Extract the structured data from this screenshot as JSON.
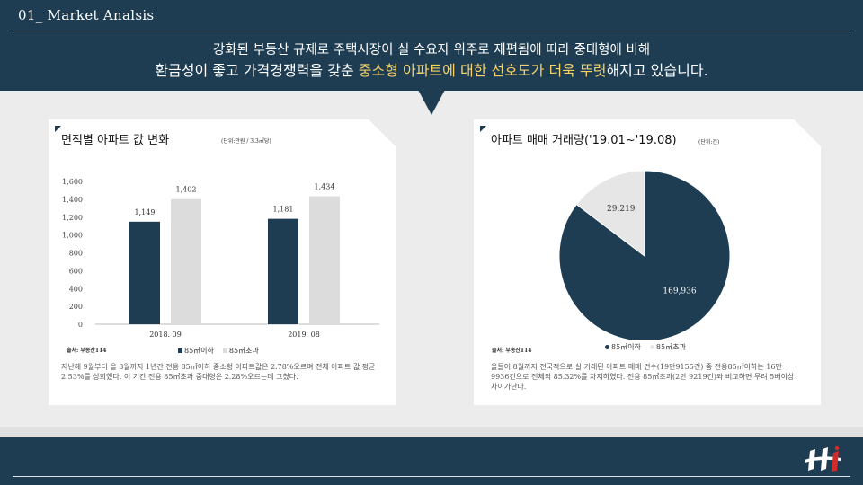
{
  "section_title": "01_ Market Analsis",
  "headline": {
    "line1": "강화된 부동산 규제로 주택시장이 실 수요자 위주로 재편됨에 따라 중대형에 비해",
    "line2_a": "환금성이 좋고 가격경쟁력을 갖춘 ",
    "line2_highlight": "중소형 아파트에 대한 선호도가 더욱 뚜렷",
    "line2_b": "해지고  있습니다."
  },
  "colors": {
    "navy": "#1e3d52",
    "light_bar": "#dcdcdc",
    "highlight": "#f5d26b"
  },
  "left_card": {
    "title": "면적별 아파트 값 변화",
    "unit": "(단위:만원 / 3.3㎡당)",
    "source": "출처: 부동산114",
    "legend": [
      "85㎡이하",
      "85㎡초과"
    ],
    "description": "지난해 9월부터  올 8월까지 1년간 전용 85㎡이하 중소형 아파트값은 2.78%오르며 전체 아파트 값 평균 2.53%를 상회했다. 이 기간 전용 85㎡초과 중대형은 2.28%오르는데 그쳤다."
  },
  "right_card": {
    "title": "아파트 매매 거래량('19.01~'19.08)",
    "unit": "(단위:건)",
    "source": "출처: 부동산114",
    "legend": [
      "85㎡이하",
      "85㎡초과"
    ],
    "description": "올들어 8월까지 전국적으로 실 거래된 아파트 매매 건수(19만9155건) 중 전용85㎡이하는 16만 9936건으로 전체의 85.32%를 차지하였다. 전용 85㎡초과(2만 9219건)와 비교하면 무려 5배이상 차이가난다."
  },
  "chart_data": [
    {
      "type": "bar",
      "categories": [
        "2018. 09",
        "2019. 08"
      ],
      "series": [
        {
          "name": "85㎡이하",
          "values": [
            1149,
            1181
          ],
          "labels": [
            "1,149",
            "1,181"
          ],
          "color": "#1e3d52"
        },
        {
          "name": "85㎡초과",
          "values": [
            1402,
            1434
          ],
          "labels": [
            "1,402",
            "1,434"
          ],
          "color": "#dcdcdc"
        }
      ],
      "yticks": [
        0,
        200,
        400,
        600,
        800,
        1000,
        1200,
        1400,
        1600
      ],
      "ytick_labels": [
        "0",
        "200",
        "400",
        "600",
        "800",
        "1,000",
        "1,200",
        "1,400",
        "1,600"
      ],
      "ylim": [
        0,
        1600
      ],
      "grid": false
    },
    {
      "type": "pie",
      "slices": [
        {
          "name": "85㎡이하",
          "value": 169936,
          "label": "169,936",
          "color": "#1e3d52"
        },
        {
          "name": "85㎡초과",
          "value": 29219,
          "label": "29,219",
          "color": "#e6e6e6"
        }
      ]
    }
  ]
}
